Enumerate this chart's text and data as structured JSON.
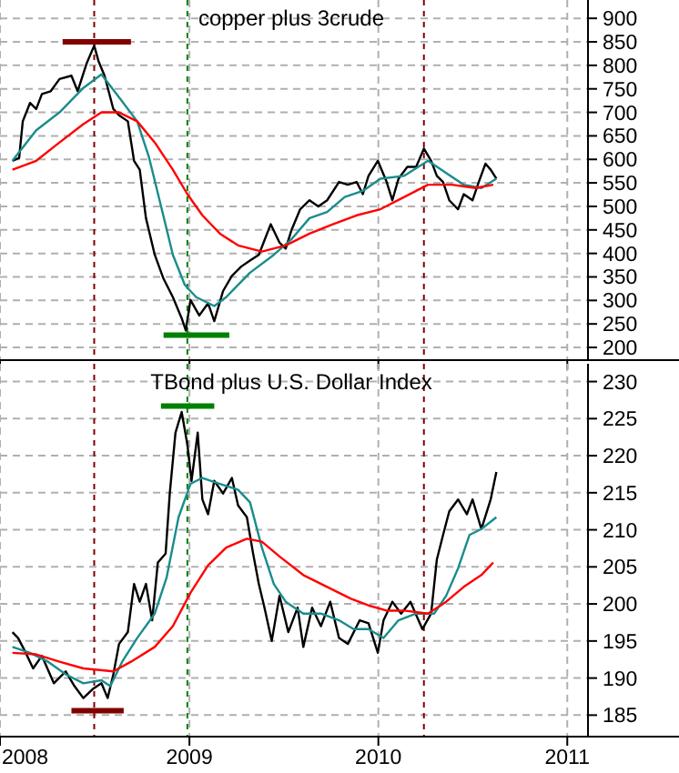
{
  "chart_data": [
    {
      "type": "line",
      "title": "copper plus 3crude",
      "xlim": [
        "2008-01-01",
        "2011-02-10"
      ],
      "xticks": [
        {
          "value": "2008",
          "label": null
        },
        {
          "value": "2009",
          "label": null
        },
        {
          "value": "2010",
          "label": null
        },
        {
          "value": "2011",
          "label": null
        }
      ],
      "ylim": [
        173,
        939
      ],
      "yticks": [
        200,
        250,
        300,
        350,
        400,
        450,
        500,
        550,
        600,
        650,
        700,
        750,
        800,
        850,
        900
      ],
      "grid": true,
      "tick_labels": "y",
      "ref_lines": [
        {
          "axis": "x",
          "value": "2008-07-01",
          "color": "#800000",
          "line_style": "dashed"
        },
        {
          "axis": "x",
          "value": "2008-12-28",
          "color": "#008000",
          "line_style": "dashed"
        },
        {
          "axis": "x",
          "value": "2010-03-30",
          "color": "#800000",
          "line_style": "dashed"
        }
      ],
      "series": [
        {
          "color": "#000000",
          "x": [
            "2008-01-25",
            "2008-02-07",
            "2008-02-14",
            "2008-02-28",
            "2008-03-11",
            "2008-03-22",
            "2008-04-08",
            "2008-04-25",
            "2008-05-18",
            "2008-05-30",
            "2008-06-16",
            "2008-07-01",
            "2008-07-09",
            "2008-07-21",
            "2008-08-07",
            "2008-08-18",
            "2008-09-04",
            "2008-09-16",
            "2008-09-27",
            "2008-10-09",
            "2008-10-26",
            "2008-11-12",
            "2008-11-30",
            "2008-12-17",
            "2008-12-25",
            "2009-01-03",
            "2009-01-20",
            "2009-02-06",
            "2009-02-18",
            "2009-03-07",
            "2009-03-24",
            "2009-04-11",
            "2009-04-28",
            "2009-05-15",
            "2009-06-07",
            "2009-06-24",
            "2009-07-06",
            "2009-07-17",
            "2009-08-03",
            "2009-08-21",
            "2009-09-07",
            "2009-09-24",
            "2009-10-17",
            "2009-11-03",
            "2009-11-20",
            "2009-12-02",
            "2009-12-13",
            "2009-12-31",
            "2010-01-17",
            "2010-01-28",
            "2010-02-09",
            "2010-02-26",
            "2010-03-15",
            "2010-03-30",
            "2010-04-13",
            "2010-04-24",
            "2010-05-06",
            "2010-05-18",
            "2010-06-04",
            "2010-06-15",
            "2010-07-02",
            "2010-07-14",
            "2010-07-27",
            "2010-08-06",
            "2010-08-17"
          ],
          "values": [
            597,
            603,
            681,
            720,
            707,
            739,
            745,
            771,
            778,
            745,
            803,
            842,
            810,
            778,
            707,
            694,
            681,
            597,
            578,
            475,
            397,
            346,
            307,
            262,
            236,
            301,
            268,
            294,
            256,
            320,
            352,
            372,
            385,
            397,
            462,
            423,
            410,
            449,
            494,
            513,
            500,
            513,
            552,
            546,
            552,
            526,
            565,
            597,
            552,
            513,
            559,
            584,
            584,
            623,
            597,
            565,
            552,
            513,
            494,
            526,
            513,
            552,
            591,
            578,
            559
          ]
        },
        {
          "color": "#1a8c8c",
          "x": [
            "2008-01-25",
            "2008-03-11",
            "2008-04-25",
            "2008-06-10",
            "2008-07-15",
            "2008-08-18",
            "2008-09-22",
            "2008-10-15",
            "2008-11-07",
            "2008-11-30",
            "2008-12-23",
            "2009-01-14",
            "2009-02-18",
            "2009-03-13",
            "2009-04-28",
            "2009-06-13",
            "2009-07-17",
            "2009-08-21",
            "2009-09-24",
            "2009-10-28",
            "2009-12-02",
            "2010-01-05",
            "2010-02-20",
            "2010-04-07",
            "2010-05-12",
            "2010-06-15",
            "2010-07-19",
            "2010-08-17"
          ],
          "values": [
            597,
            662,
            700,
            752,
            781,
            732,
            681,
            604,
            501,
            397,
            333,
            307,
            288,
            307,
            359,
            397,
            430,
            475,
            488,
            520,
            533,
            559,
            565,
            597,
            571,
            546,
            539,
            559
          ]
        },
        {
          "color": "#ff0000",
          "x": [
            "2008-01-25",
            "2008-03-11",
            "2008-04-25",
            "2008-06-10",
            "2008-07-15",
            "2008-08-18",
            "2008-09-22",
            "2008-10-26",
            "2008-11-30",
            "2008-12-28",
            "2009-01-26",
            "2009-03-01",
            "2009-04-05",
            "2009-05-21",
            "2009-07-06",
            "2009-08-21",
            "2009-10-05",
            "2009-11-20",
            "2010-01-05",
            "2010-02-20",
            "2010-04-07",
            "2010-05-23",
            "2010-07-08",
            "2010-08-11"
          ],
          "values": [
            578,
            597,
            636,
            675,
            700,
            700,
            681,
            636,
            578,
            526,
            481,
            442,
            417,
            404,
            417,
            442,
            462,
            481,
            494,
            520,
            546,
            546,
            539,
            546
          ]
        },
        {
          "color": "#800000",
          "x": [
            "2008-05-01",
            "2008-09-10"
          ],
          "values": [
            850,
            850
          ]
        },
        {
          "color": "#008000",
          "x": [
            "2008-11-12",
            "2009-03-19"
          ],
          "values": [
            226,
            226
          ]
        }
      ]
    },
    {
      "type": "line",
      "title": "TBond plus U.S. Dollar Index",
      "xlim": [
        "2008-01-01",
        "2011-02-10"
      ],
      "xticks": [
        {
          "value": "2008",
          "label": "2008"
        },
        {
          "value": "2009",
          "label": "2009"
        },
        {
          "value": "2010",
          "label": "2010"
        },
        {
          "value": "2011",
          "label": "2011"
        }
      ],
      "ylim": [
        182.1,
        232.4
      ],
      "yticks": [
        185,
        190,
        195,
        200,
        205,
        210,
        215,
        220,
        225,
        230
      ],
      "grid": true,
      "ref_lines": [
        {
          "axis": "x",
          "value": "2008-07-01",
          "color": "#800000",
          "line_style": "dashed"
        },
        {
          "axis": "x",
          "value": "2008-12-28",
          "color": "#008000",
          "line_style": "dashed"
        },
        {
          "axis": "x",
          "value": "2010-03-30",
          "color": "#800000",
          "line_style": "dashed"
        }
      ],
      "series": [
        {
          "color": "#000000",
          "x": [
            "2008-01-25",
            "2008-02-05",
            "2008-02-17",
            "2008-03-05",
            "2008-03-22",
            "2008-04-14",
            "2008-05-07",
            "2008-05-24",
            "2008-06-10",
            "2008-06-28",
            "2008-07-15",
            "2008-07-27",
            "2008-08-07",
            "2008-08-18",
            "2008-09-04",
            "2008-09-16",
            "2008-09-27",
            "2008-10-09",
            "2008-10-21",
            "2008-11-01",
            "2008-11-16",
            "2008-11-24",
            "2008-12-05",
            "2008-12-17",
            "2008-12-28",
            "2009-01-05",
            "2009-01-17",
            "2009-01-26",
            "2009-02-06",
            "2009-02-18",
            "2009-03-07",
            "2009-03-24",
            "2009-04-05",
            "2009-04-22",
            "2009-05-04",
            "2009-05-15",
            "2009-05-26",
            "2009-06-09",
            "2009-06-24",
            "2009-07-11",
            "2009-07-29",
            "2009-08-09",
            "2009-08-26",
            "2009-09-12",
            "2009-09-30",
            "2009-10-17",
            "2009-11-03",
            "2009-11-26",
            "2009-12-13",
            "2009-12-31",
            "2010-01-11",
            "2010-01-28",
            "2010-02-14",
            "2010-03-04",
            "2010-03-27",
            "2010-04-13",
            "2010-04-24",
            "2010-05-06",
            "2010-05-18",
            "2010-06-04",
            "2010-06-21",
            "2010-07-02",
            "2010-07-19",
            "2010-08-06",
            "2010-08-17"
          ],
          "values": [
            196.2,
            195.4,
            193.8,
            191.3,
            193.0,
            189.3,
            190.9,
            188.9,
            187.3,
            188.5,
            189.3,
            187.3,
            190.5,
            194.6,
            196.2,
            202.7,
            200.3,
            202.7,
            197.8,
            205.6,
            206.8,
            214.9,
            223.1,
            225.9,
            221.5,
            216.6,
            223.1,
            214.1,
            212.1,
            216.6,
            214.9,
            217.0,
            213.3,
            211.7,
            206.8,
            202.7,
            199.5,
            195.0,
            201.1,
            196.2,
            199.5,
            194.2,
            199.5,
            197.0,
            200.3,
            195.4,
            194.6,
            197.8,
            197.4,
            193.4,
            197.8,
            200.3,
            198.7,
            200.3,
            196.6,
            198.7,
            206.0,
            209.3,
            212.5,
            214.1,
            212.1,
            214.1,
            210.1,
            214.1,
            217.8
          ]
        },
        {
          "color": "#1a8c8c",
          "x": [
            "2008-01-25",
            "2008-02-28",
            "2008-04-03",
            "2008-05-07",
            "2008-06-10",
            "2008-07-15",
            "2008-08-01",
            "2008-08-24",
            "2008-09-22",
            "2008-10-26",
            "2008-11-18",
            "2008-12-11",
            "2009-01-03",
            "2009-01-26",
            "2009-03-01",
            "2009-04-05",
            "2009-04-28",
            "2009-05-21",
            "2009-06-13",
            "2009-07-06",
            "2009-08-09",
            "2009-09-12",
            "2009-10-17",
            "2009-11-14",
            "2009-12-13",
            "2010-01-11",
            "2010-02-09",
            "2010-03-15",
            "2010-04-19",
            "2010-05-12",
            "2010-06-04",
            "2010-06-26",
            "2010-07-19",
            "2010-08-17"
          ],
          "values": [
            194.2,
            193.4,
            192.2,
            190.5,
            189.3,
            189.7,
            188.9,
            192.2,
            195.4,
            198.7,
            203.6,
            211.7,
            216.2,
            217.0,
            216.2,
            215.4,
            213.7,
            207.6,
            202.7,
            200.3,
            198.7,
            198.7,
            197.8,
            196.6,
            196.6,
            195.4,
            197.8,
            198.7,
            198.7,
            201.1,
            204.8,
            209.3,
            210.1,
            211.7
          ]
        },
        {
          "color": "#ff0000",
          "x": [
            "2008-01-25",
            "2008-03-11",
            "2008-04-25",
            "2008-06-10",
            "2008-08-07",
            "2008-09-10",
            "2008-10-26",
            "2008-11-30",
            "2009-01-03",
            "2009-02-06",
            "2009-03-13",
            "2009-04-22",
            "2009-05-21",
            "2009-06-24",
            "2009-08-09",
            "2009-09-24",
            "2009-11-09",
            "2009-12-13",
            "2010-01-17",
            "2010-02-20",
            "2010-04-07",
            "2010-05-12",
            "2010-06-15",
            "2010-07-19",
            "2010-08-11"
          ],
          "values": [
            193.4,
            193.2,
            192.2,
            191.3,
            190.9,
            192.2,
            194.2,
            197.0,
            201.5,
            205.2,
            207.6,
            208.8,
            208.4,
            206.4,
            203.9,
            202.3,
            200.7,
            199.8,
            199.1,
            199.1,
            198.7,
            200.3,
            202.3,
            203.9,
            205.6
          ]
        },
        {
          "color": "#008000",
          "x": [
            "2008-11-07",
            "2009-02-18"
          ],
          "values": [
            226.7,
            226.7
          ]
        },
        {
          "color": "#800000",
          "x": [
            "2008-05-18",
            "2008-08-27"
          ],
          "values": [
            185.6,
            185.6
          ]
        }
      ]
    }
  ]
}
